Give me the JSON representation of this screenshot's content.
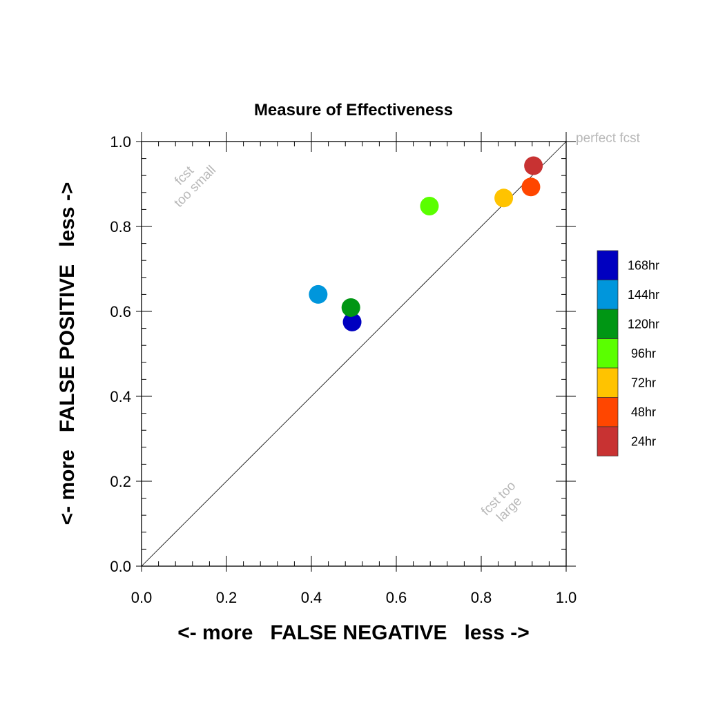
{
  "chart_data": {
    "type": "scatter",
    "title": "Measure of Effectiveness",
    "xlabel": "<- more   FALSE NEGATIVE   less ->",
    "ylabel": "<- more   FALSE POSITIVE   less ->",
    "xlim": [
      0.0,
      1.0
    ],
    "ylim": [
      0.0,
      1.0
    ],
    "xticks": [
      "0.0",
      "0.2",
      "0.4",
      "0.6",
      "0.8",
      "1.0"
    ],
    "yticks": [
      "0.0",
      "0.2",
      "0.4",
      "0.6",
      "0.8",
      "1.0"
    ],
    "grid": false,
    "legend_position": "right",
    "diagonal_reference_line": true,
    "annotations": {
      "perfect": "perfect fcst",
      "small_line1": "fcst",
      "small_line2": "too small",
      "large_line1": "fcst too",
      "large_line2": "large"
    },
    "series": [
      {
        "name": "168hr",
        "color": "#0000c0",
        "x": 0.496,
        "y": 0.575
      },
      {
        "name": "144hr",
        "color": "#0096dc",
        "x": 0.416,
        "y": 0.64
      },
      {
        "name": "120hr",
        "color": "#009614",
        "x": 0.493,
        "y": 0.609
      },
      {
        "name": "96hr",
        "color": "#5aff00",
        "x": 0.678,
        "y": 0.848
      },
      {
        "name": "72hr",
        "color": "#ffc300",
        "x": 0.853,
        "y": 0.867
      },
      {
        "name": "48hr",
        "color": "#ff4600",
        "x": 0.917,
        "y": 0.893
      },
      {
        "name": "24hr",
        "color": "#c83232",
        "x": 0.923,
        "y": 0.943
      }
    ]
  }
}
